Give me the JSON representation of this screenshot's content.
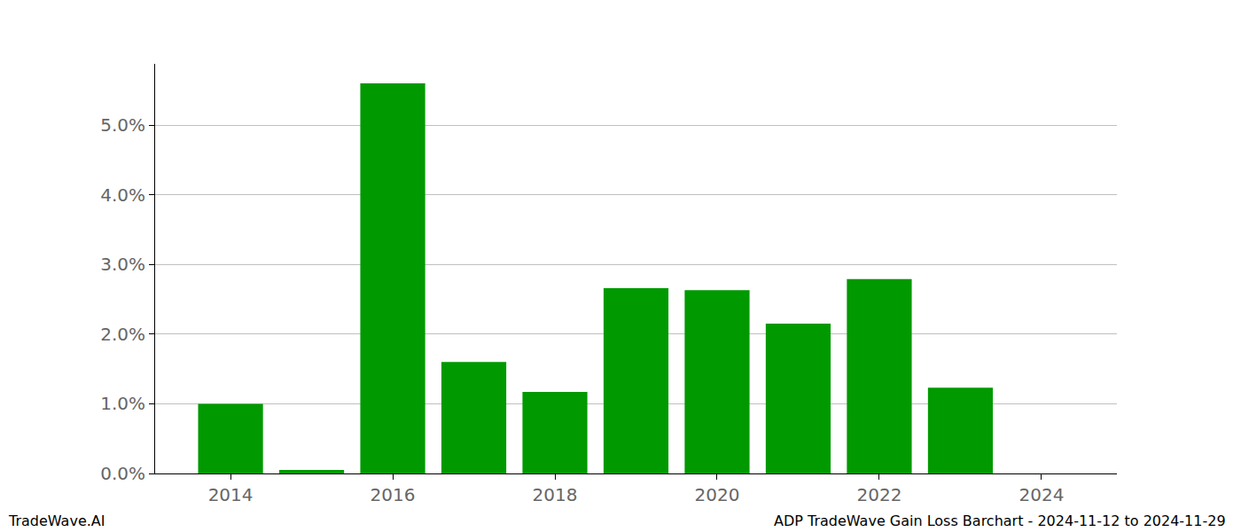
{
  "chart_data": {
    "type": "bar",
    "x": [
      2014,
      2015,
      2016,
      2017,
      2018,
      2019,
      2020,
      2021,
      2022,
      2023
    ],
    "values": [
      1.0,
      0.05,
      5.6,
      1.6,
      1.17,
      2.66,
      2.63,
      2.15,
      2.79,
      1.23
    ],
    "color": "#009900",
    "xlim": [
      2013.07,
      2024.93
    ],
    "xticks": [
      2014,
      2016,
      2018,
      2020,
      2022,
      2024
    ],
    "ylim": [
      0,
      5.88
    ],
    "yticks": [
      {
        "value": 0,
        "label": "0.0%"
      },
      {
        "value": 1,
        "label": "1.0%"
      },
      {
        "value": 2,
        "label": "2.0%"
      },
      {
        "value": 3,
        "label": "3.0%"
      },
      {
        "value": 4,
        "label": "4.0%"
      },
      {
        "value": 5,
        "label": "5.0%"
      }
    ],
    "grid": true,
    "annotations": [
      {
        "text": "TradeWave.AI"
      },
      {
        "text": "ADP TradeWave Gain Loss Barchart - 2024-11-12 to 2024-11-29"
      }
    ]
  }
}
